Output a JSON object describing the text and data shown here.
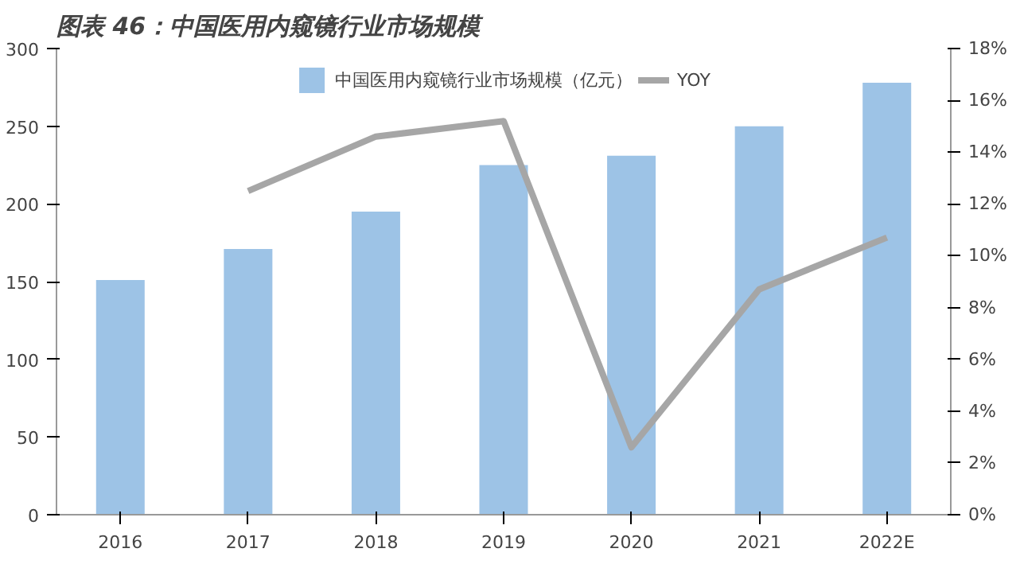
{
  "chart_data": {
    "type": "bar",
    "title": "图表 46：中国医用内窥镜行业市场规模",
    "categories": [
      "2016",
      "2017",
      "2018",
      "2019",
      "2020",
      "2021",
      "2022E"
    ],
    "series": [
      {
        "name": "中国医用内窥镜行业市场规模（亿元）",
        "color": "#9dc3e6",
        "values": [
          151,
          171,
          195,
          225,
          231,
          250,
          278
        ]
      },
      {
        "name": "YOY",
        "type": "line",
        "axis": "y2",
        "color": "#a6a6a6",
        "values": [
          null,
          12.5,
          14.6,
          15.2,
          2.6,
          8.7,
          10.7
        ]
      }
    ],
    "ylim": [
      0,
      300
    ],
    "yticks": [
      0,
      50,
      100,
      150,
      200,
      250,
      300
    ],
    "y2lim": [
      0,
      18
    ],
    "y2ticks": [
      {
        "value": 0,
        "label": "0%"
      },
      {
        "value": 2,
        "label": "2%"
      },
      {
        "value": 4,
        "label": "4%"
      },
      {
        "value": 6,
        "label": "6%"
      },
      {
        "value": 8,
        "label": "8%"
      },
      {
        "value": 10,
        "label": "10%"
      },
      {
        "value": 12,
        "label": "12%"
      },
      {
        "value": 14,
        "label": "14%"
      },
      {
        "value": 16,
        "label": "16%"
      },
      {
        "value": 18,
        "label": "18%"
      }
    ],
    "grid": false,
    "legend": "top"
  }
}
